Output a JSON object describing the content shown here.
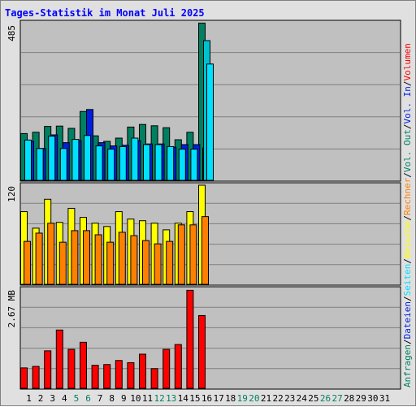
{
  "title": "Tages-Statistik im Monat Juli 2025",
  "chart_data": [
    {
      "type": "bar",
      "name": "top-panel",
      "max_label": "485",
      "ylim": [
        0,
        485
      ],
      "series": [
        {
          "name": "Anfragen",
          "color": "#008060",
          "values": [
            144,
            148,
            166,
            167,
            160,
            212,
            137,
            120,
            130,
            164,
            172,
            168,
            162,
            125,
            148,
            484
          ]
        },
        {
          "name": "Dateien",
          "color": "#0020e0",
          "values": [
            120,
            98,
            140,
            116,
            122,
            218,
            116,
            106,
            108,
            122,
            112,
            112,
            102,
            110,
            110,
            100
          ]
        },
        {
          "name": "Seiten",
          "color": "#00e0ff",
          "values": [
            124,
            98,
            136,
            98,
            126,
            138,
            106,
            96,
            104,
            130,
            110,
            110,
            104,
            96,
            96,
            100
          ]
        }
      ],
      "extra": {
        "day": 16,
        "values": [
          430,
          358
        ]
      }
    },
    {
      "type": "bar",
      "name": "middle-panel",
      "max_label": "120",
      "ylim": [
        0,
        120
      ],
      "series": [
        {
          "name": "Besuche",
          "color": "#ffff00",
          "values": [
            88,
            68,
            103,
            75,
            92,
            81,
            74,
            70,
            88,
            79,
            77,
            74,
            66,
            74,
            88,
            120
          ]
        },
        {
          "name": "Rechner",
          "color": "#ff8000",
          "values": [
            52,
            62,
            74,
            51,
            65,
            65,
            60,
            51,
            63,
            59,
            53,
            49,
            52,
            72,
            72,
            82
          ]
        }
      ]
    },
    {
      "type": "bar",
      "name": "bottom-panel",
      "max_label": "2.67 MB",
      "ylim": [
        0,
        2.67
      ],
      "series": [
        {
          "name": "Volumen",
          "color": "#ff0000",
          "values": [
            0.55,
            0.59,
            1.01,
            1.57,
            1.05,
            1.24,
            0.62,
            0.64,
            0.75,
            0.69,
            0.92,
            0.53,
            1.05,
            1.18,
            2.64,
            1.96
          ]
        }
      ]
    }
  ],
  "x_labels": [
    "1",
    "2",
    "3",
    "4",
    "5",
    "6",
    "7",
    "8",
    "9",
    "10",
    "11",
    "12",
    "13",
    "14",
    "15",
    "16",
    "17",
    "18",
    "19",
    "20",
    "21",
    "22",
    "23",
    "24",
    "25",
    "26",
    "27",
    "28",
    "29",
    "30",
    "31"
  ],
  "weekend_days": [
    5,
    6,
    12,
    13,
    19,
    20,
    26,
    27
  ],
  "colors": {
    "weekday": "#000000",
    "weekend": "#008060",
    "panel_bg": "#c0c0c0",
    "grid": "#808080",
    "title": "#0000ff"
  },
  "right_labels": [
    {
      "text": "Anfragen",
      "color": "#008060"
    },
    {
      "text": "Dateien",
      "color": "#0020e0"
    },
    {
      "text": "Seiten",
      "color": "#00e0ff"
    },
    {
      "text": "Besuche",
      "color": "#ffff00"
    },
    {
      "text": "Rechner",
      "color": "#ff8000"
    },
    {
      "text": "Vol. Out",
      "color": "#008060"
    },
    {
      "text": "Vol. In",
      "color": "#0020e0"
    },
    {
      "text": "Volumen",
      "color": "#ff0000"
    }
  ],
  "right_separator": "/"
}
